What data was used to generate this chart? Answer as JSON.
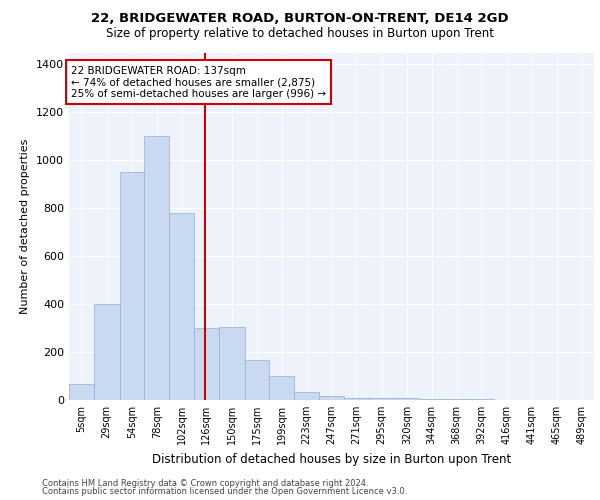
{
  "title_line1": "22, BRIDGEWATER ROAD, BURTON-ON-TRENT, DE14 2GD",
  "title_line2": "Size of property relative to detached houses in Burton upon Trent",
  "xlabel": "Distribution of detached houses by size in Burton upon Trent",
  "ylabel": "Number of detached properties",
  "footnote1": "Contains HM Land Registry data © Crown copyright and database right 2024.",
  "footnote2": "Contains public sector information licensed under the Open Government Licence v3.0.",
  "annotation_line1": "22 BRIDGEWATER ROAD: 137sqm",
  "annotation_line2": "← 74% of detached houses are smaller (2,875)",
  "annotation_line3": "25% of semi-detached houses are larger (996) →",
  "bar_color": "#c9d9f0",
  "bar_edge_color": "#8fb0d8",
  "vline_color": "#cc0000",
  "vline_x": 137,
  "categories": [
    "5sqm",
    "29sqm",
    "54sqm",
    "78sqm",
    "102sqm",
    "126sqm",
    "150sqm",
    "175sqm",
    "199sqm",
    "223sqm",
    "247sqm",
    "271sqm",
    "295sqm",
    "320sqm",
    "344sqm",
    "368sqm",
    "392sqm",
    "416sqm",
    "441sqm",
    "465sqm",
    "489sqm"
  ],
  "bin_edges": [
    5,
    29,
    54,
    78,
    102,
    126,
    150,
    175,
    199,
    223,
    247,
    271,
    295,
    320,
    344,
    368,
    392,
    416,
    441,
    465,
    489,
    513
  ],
  "values": [
    65,
    400,
    950,
    1100,
    780,
    300,
    305,
    165,
    100,
    35,
    15,
    10,
    10,
    8,
    5,
    4,
    3,
    2,
    2,
    2,
    2
  ],
  "ylim": [
    0,
    1450
  ],
  "yticks": [
    0,
    200,
    400,
    600,
    800,
    1000,
    1200,
    1400
  ],
  "background_color": "#eef2fb",
  "grid_color": "#ffffff"
}
